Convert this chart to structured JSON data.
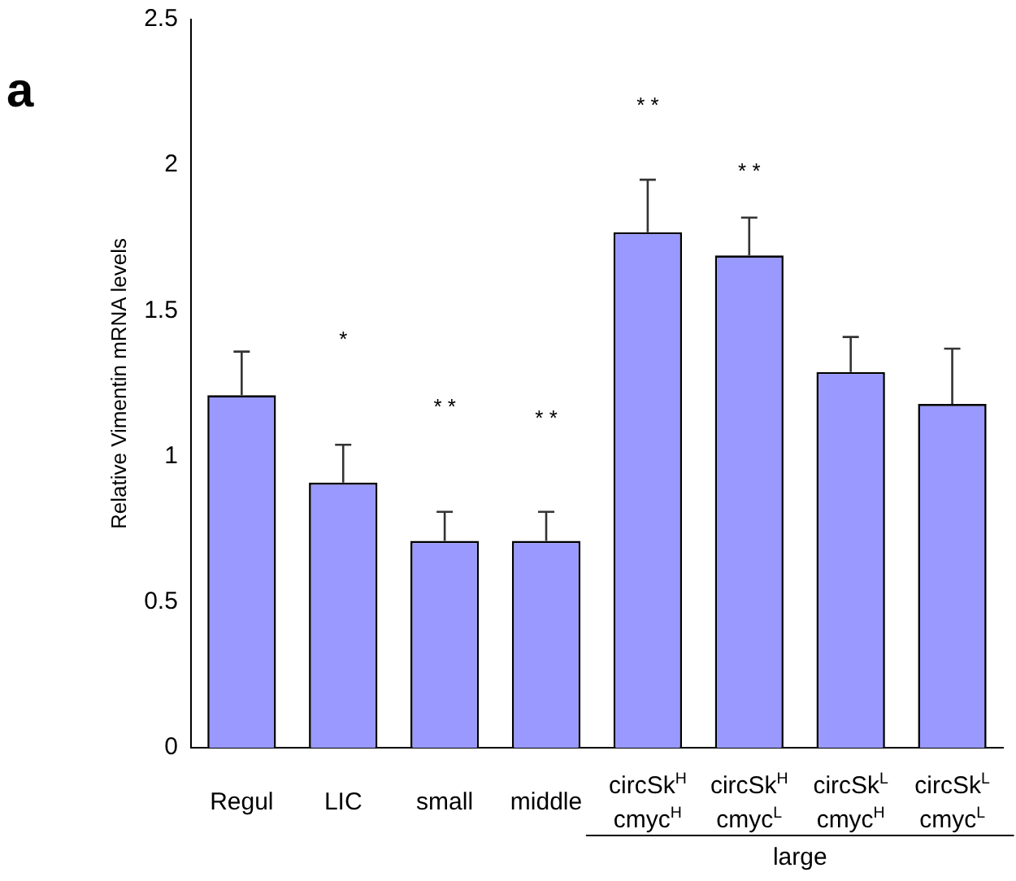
{
  "chart_data": {
    "type": "bar",
    "title": "a",
    "ylabel": "Relative Vimentin mRNA levels",
    "categories": [
      "Regul",
      "LIC",
      "small",
      "middle",
      "circSk$^{H}$ cmyc$^{H}$",
      "circSk$^{H}$ cmyc$^{L}$",
      "circSk$^{L}$ cmyc$^{H}$",
      "circSk$^{L}$ cmyc$^{L}$"
    ],
    "values": [
      1.21,
      0.91,
      0.71,
      0.71,
      1.77,
      1.69,
      1.29,
      1.18
    ],
    "errors": [
      [
        1.21,
        1.36
      ],
      [
        0.91,
        1.04
      ],
      [
        0.71,
        0.81
      ],
      [
        0.71,
        0.81
      ],
      [
        1.77,
        1.95
      ],
      [
        1.69,
        1.82
      ],
      [
        1.29,
        1.41
      ],
      [
        1.18,
        1.37
      ]
    ],
    "color": "#9999ff",
    "ylim": [
      0,
      2.5
    ],
    "yticks": [
      0,
      0.5,
      1,
      1.5,
      2,
      2.5
    ],
    "grid": false,
    "legend": false,
    "annotations": [
      "*",
      "* *",
      "* *",
      "* *",
      "* *",
      "large"
    ]
  }
}
